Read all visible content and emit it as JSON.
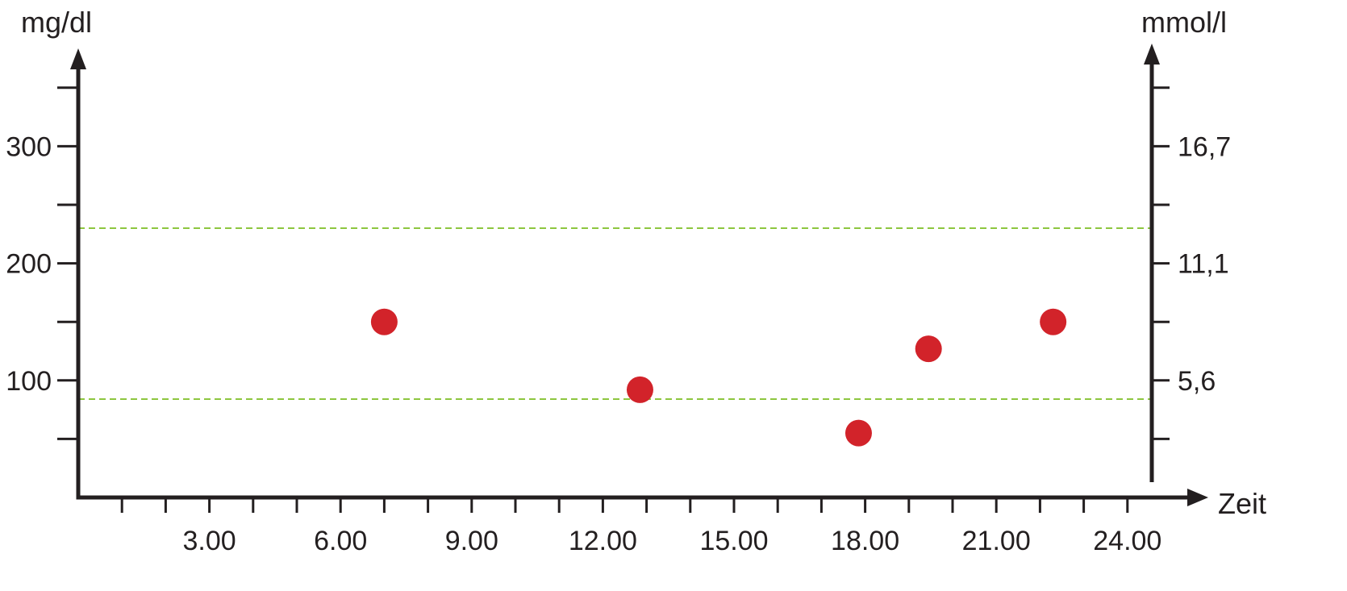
{
  "chart_data": {
    "type": "scatter",
    "title": "",
    "left_axis": {
      "unit": "mg/dl",
      "ylim": [
        0,
        370
      ],
      "ticks": [
        {
          "value": 100,
          "label": "100"
        },
        {
          "value": 200,
          "label": "200"
        },
        {
          "value": 300,
          "label": "300"
        }
      ],
      "minor_ticks": [
        50,
        150,
        250,
        350
      ]
    },
    "right_axis": {
      "unit": "mmol/l",
      "ticks": [
        {
          "value": 100,
          "label": "5,6"
        },
        {
          "value": 200,
          "label": "11,1"
        },
        {
          "value": 300,
          "label": "16,7"
        }
      ],
      "minor_ticks": [
        50,
        150,
        250,
        350
      ]
    },
    "x_axis": {
      "xlabel": "Zeit",
      "xlim": [
        0,
        25.5
      ],
      "ticks": [
        {
          "value": 3,
          "label": "3.00"
        },
        {
          "value": 6,
          "label": "6.00"
        },
        {
          "value": 9,
          "label": "9.00"
        },
        {
          "value": 12,
          "label": "12.00"
        },
        {
          "value": 15,
          "label": "15.00"
        },
        {
          "value": 18,
          "label": "18.00"
        },
        {
          "value": 21,
          "label": "21.00"
        },
        {
          "value": 24,
          "label": "24.00"
        }
      ],
      "minor_ticks": [
        1,
        2,
        4,
        5,
        7,
        8,
        10,
        11,
        13,
        14,
        16,
        17,
        19,
        20,
        22,
        23
      ]
    },
    "reference_lines": [
      {
        "value": 230,
        "color": "#8dc63f"
      },
      {
        "value": 84,
        "color": "#8dc63f"
      }
    ],
    "points": [
      {
        "x": 7.0,
        "y": 150
      },
      {
        "x": 12.85,
        "y": 92
      },
      {
        "x": 17.85,
        "y": 55
      },
      {
        "x": 19.45,
        "y": 127
      },
      {
        "x": 22.3,
        "y": 150
      }
    ],
    "colors": {
      "axis": "#231f20",
      "point": "#d2232a",
      "reference": "#8dc63f"
    },
    "grid": false,
    "legend": "none"
  }
}
